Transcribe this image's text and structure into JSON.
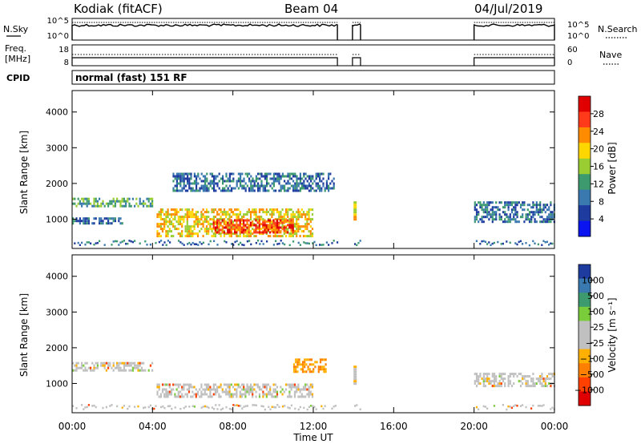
{
  "header": {
    "station": "Kodiak (fitACF)",
    "beam": "Beam 04",
    "date": "04/Jul/2019"
  },
  "noise_panel": {
    "left_label": "N.Sky",
    "left_ticks": [
      "10^5",
      "10^0"
    ],
    "right_label": "N.Search",
    "right_ticks": [
      "10^5",
      "10^0"
    ]
  },
  "freq_panel": {
    "left_label_1": "Freq.",
    "left_label_2": "[MHz]",
    "left_ticks": [
      "18",
      "8"
    ],
    "right_label": "Nave",
    "right_ticks": [
      "60",
      "0"
    ]
  },
  "cpid": {
    "label": "CPID",
    "mode": "normal (fast) 151 RF"
  },
  "colors": {
    "power_scale": [
      "#0a14f0",
      "#1e3ca0",
      "#3a78b0",
      "#3c9a6e",
      "#9acd32",
      "#ffd700",
      "#ff8c00",
      "#ff3a1a",
      "#e00000"
    ],
    "velocity_scale": [
      "#1e3ca0",
      "#3a78b0",
      "#3c9a6e",
      "#7acc3a",
      "#c0c0c0",
      "#c0c0c0",
      "#ffb000",
      "#ff8000",
      "#ff4000",
      "#e00000"
    ]
  },
  "chart_data": [
    {
      "type": "heatmap",
      "quantity": "power",
      "ylabel": "Slant Range [km]",
      "ylim": [
        180,
        4600
      ],
      "yticks": [
        "1000",
        "2000",
        "3000",
        "4000"
      ],
      "xlim": [
        0,
        24
      ],
      "colorbar": {
        "label": "Power [dB]",
        "ticks": [
          "4",
          "8",
          "12",
          "16",
          "20",
          "24",
          "28"
        ]
      },
      "data_gaps_hours": [
        [
          13.2,
          14.0
        ],
        [
          14.3,
          20.0
        ]
      ],
      "echo_regions": [
        {
          "t0": 0.0,
          "t1": 4.0,
          "r0": 1350,
          "r1": 1600,
          "typical_db": 10
        },
        {
          "t0": 0.0,
          "t1": 2.5,
          "r0": 850,
          "r1": 1050,
          "typical_db": 8
        },
        {
          "t0": 4.2,
          "t1": 12.0,
          "r0": 500,
          "r1": 1300,
          "typical_db": 18
        },
        {
          "t0": 7.0,
          "t1": 11.0,
          "r0": 600,
          "r1": 1000,
          "typical_db": 28
        },
        {
          "t0": 5.0,
          "t1": 13.0,
          "r0": 1800,
          "r1": 2300,
          "typical_db": 6
        },
        {
          "t0": 20.0,
          "t1": 24.0,
          "r0": 900,
          "r1": 1500,
          "typical_db": 8
        }
      ]
    },
    {
      "type": "heatmap",
      "quantity": "velocity",
      "ylabel": "Slant Range [km]",
      "ylim": [
        180,
        4600
      ],
      "yticks": [
        "1000",
        "2000",
        "3000",
        "4000"
      ],
      "xlabel": "Time UT",
      "xticks": [
        "00:00",
        "04:00",
        "08:00",
        "12:00",
        "16:00",
        "20:00",
        "00:00"
      ],
      "xlim": [
        0,
        24
      ],
      "colorbar": {
        "label": "Velocity [m s⁻¹]",
        "ticks": [
          "1000",
          "500",
          "100",
          "25",
          "−25",
          "−100",
          "−500",
          "−1000"
        ]
      },
      "data_gaps_hours": [
        [
          13.2,
          14.0
        ],
        [
          14.3,
          20.0
        ]
      ],
      "echo_regions": [
        {
          "t0": 0.0,
          "t1": 4.0,
          "r0": 1350,
          "r1": 1600,
          "typical_ms": 0
        },
        {
          "t0": 4.2,
          "t1": 12.0,
          "r0": 600,
          "r1": 1000,
          "typical_ms": 0
        },
        {
          "t0": 11.0,
          "t1": 12.6,
          "r0": 1300,
          "r1": 1700,
          "typical_ms": -150
        },
        {
          "t0": 20.0,
          "t1": 24.0,
          "r0": 900,
          "r1": 1300,
          "typical_ms": 0
        }
      ]
    }
  ]
}
